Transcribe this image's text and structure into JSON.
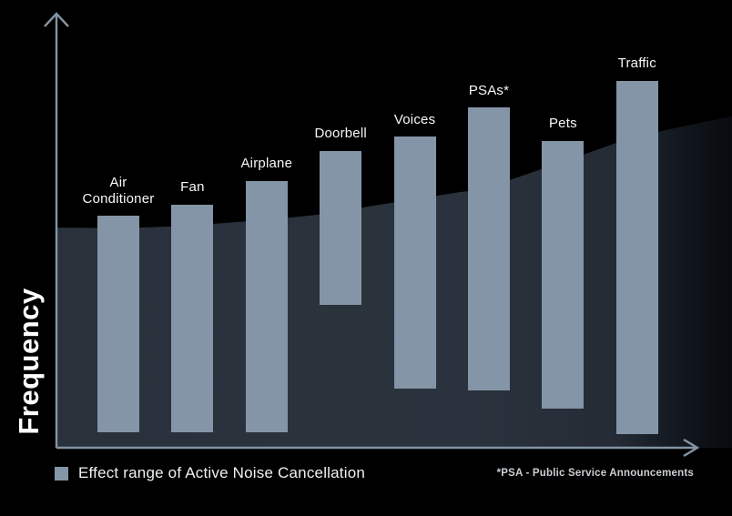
{
  "y_axis_label": "Frequency",
  "legend": {
    "swatch_color": "#8495a7",
    "label": "Effect range of Active Noise Cancellation"
  },
  "footnote": "*PSA - Public Service Announcements",
  "chart_data": {
    "type": "bar",
    "subtype": "floating-range-bars",
    "title": "",
    "xlabel": "",
    "ylabel": "Frequency",
    "y_units": "relative scale (axis unlabeled)",
    "ylim": [
      0,
      100
    ],
    "grid": false,
    "legend_position": "bottom-left",
    "categories": [
      "Air Conditioner",
      "Fan",
      "Airplane",
      "Doorbell",
      "Voices",
      "PSAs*",
      "Pets",
      "Traffic"
    ],
    "bars": [
      {
        "label": "Air\nConditioner",
        "range": [
          3.6,
          53.3
        ]
      },
      {
        "label": "Fan",
        "range": [
          3.6,
          55.9
        ]
      },
      {
        "label": "Airplane",
        "range": [
          3.6,
          61.3
        ]
      },
      {
        "label": "Doorbell",
        "range": [
          32.8,
          68.2
        ]
      },
      {
        "label": "Voices",
        "range": [
          13.6,
          71.5
        ]
      },
      {
        "label": "PSAs*",
        "range": [
          13.2,
          78.2
        ]
      },
      {
        "label": "Pets",
        "range": [
          9.0,
          70.5
        ]
      },
      {
        "label": "Traffic",
        "range": [
          3.1,
          84.3
        ]
      }
    ],
    "background_region": {
      "description": "dark shaded hill rising left-to-right behind the bars, fading to black at the right edge",
      "upper_bound_points": [
        [
          0,
          50.6
        ],
        [
          16,
          50.8
        ],
        [
          37,
          53.3
        ],
        [
          48,
          55.9
        ],
        [
          59,
          58.6
        ],
        [
          64,
          60.0
        ],
        [
          78,
          67.4
        ],
        [
          86,
          71.5
        ],
        [
          100,
          76.2
        ]
      ]
    },
    "colors": {
      "bar": "#8495a7",
      "background_region": "#2a323d",
      "background": "#000000",
      "axis": "#8494a3",
      "label_text": "#f6f8f9"
    }
  }
}
